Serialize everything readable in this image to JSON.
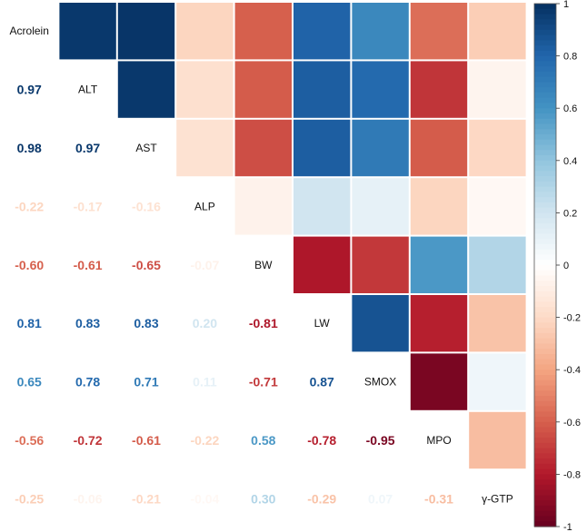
{
  "chart_data": {
    "type": "heatmap",
    "title": "",
    "variables": [
      "Acrolein",
      "ALT",
      "AST",
      "ALP",
      "BW",
      "LW",
      "SMOX",
      "MPO",
      "γ-GTP"
    ],
    "lower_triangle": [
      [],
      [
        0.97
      ],
      [
        0.98,
        0.97
      ],
      [
        -0.22,
        -0.17,
        -0.16
      ],
      [
        -0.6,
        -0.61,
        -0.65,
        -0.07
      ],
      [
        0.81,
        0.83,
        0.83,
        0.2,
        -0.81
      ],
      [
        0.65,
        0.78,
        0.71,
        0.11,
        -0.71,
        0.87
      ],
      [
        -0.56,
        -0.72,
        -0.61,
        -0.22,
        0.58,
        -0.78,
        -0.95
      ],
      [
        -0.25,
        -0.06,
        -0.21,
        -0.04,
        0.3,
        -0.29,
        0.07,
        -0.31
      ]
    ],
    "upper": "colored squares",
    "lower": "numbers",
    "colorbar": {
      "range": [
        -1,
        1
      ],
      "ticks": [
        "1",
        "0.8",
        "0.6",
        "0.4",
        "0.2",
        "0",
        "-0.2",
        "-0.4",
        "-0.6",
        "-0.8",
        "-1"
      ],
      "placement": "right"
    },
    "palette": [
      "#67001F",
      "#B2182B",
      "#D6604D",
      "#F4A582",
      "#FDDBC7",
      "#FFFFFF",
      "#D1E5F0",
      "#92C5DE",
      "#4393C3",
      "#2166AC",
      "#053061"
    ]
  }
}
